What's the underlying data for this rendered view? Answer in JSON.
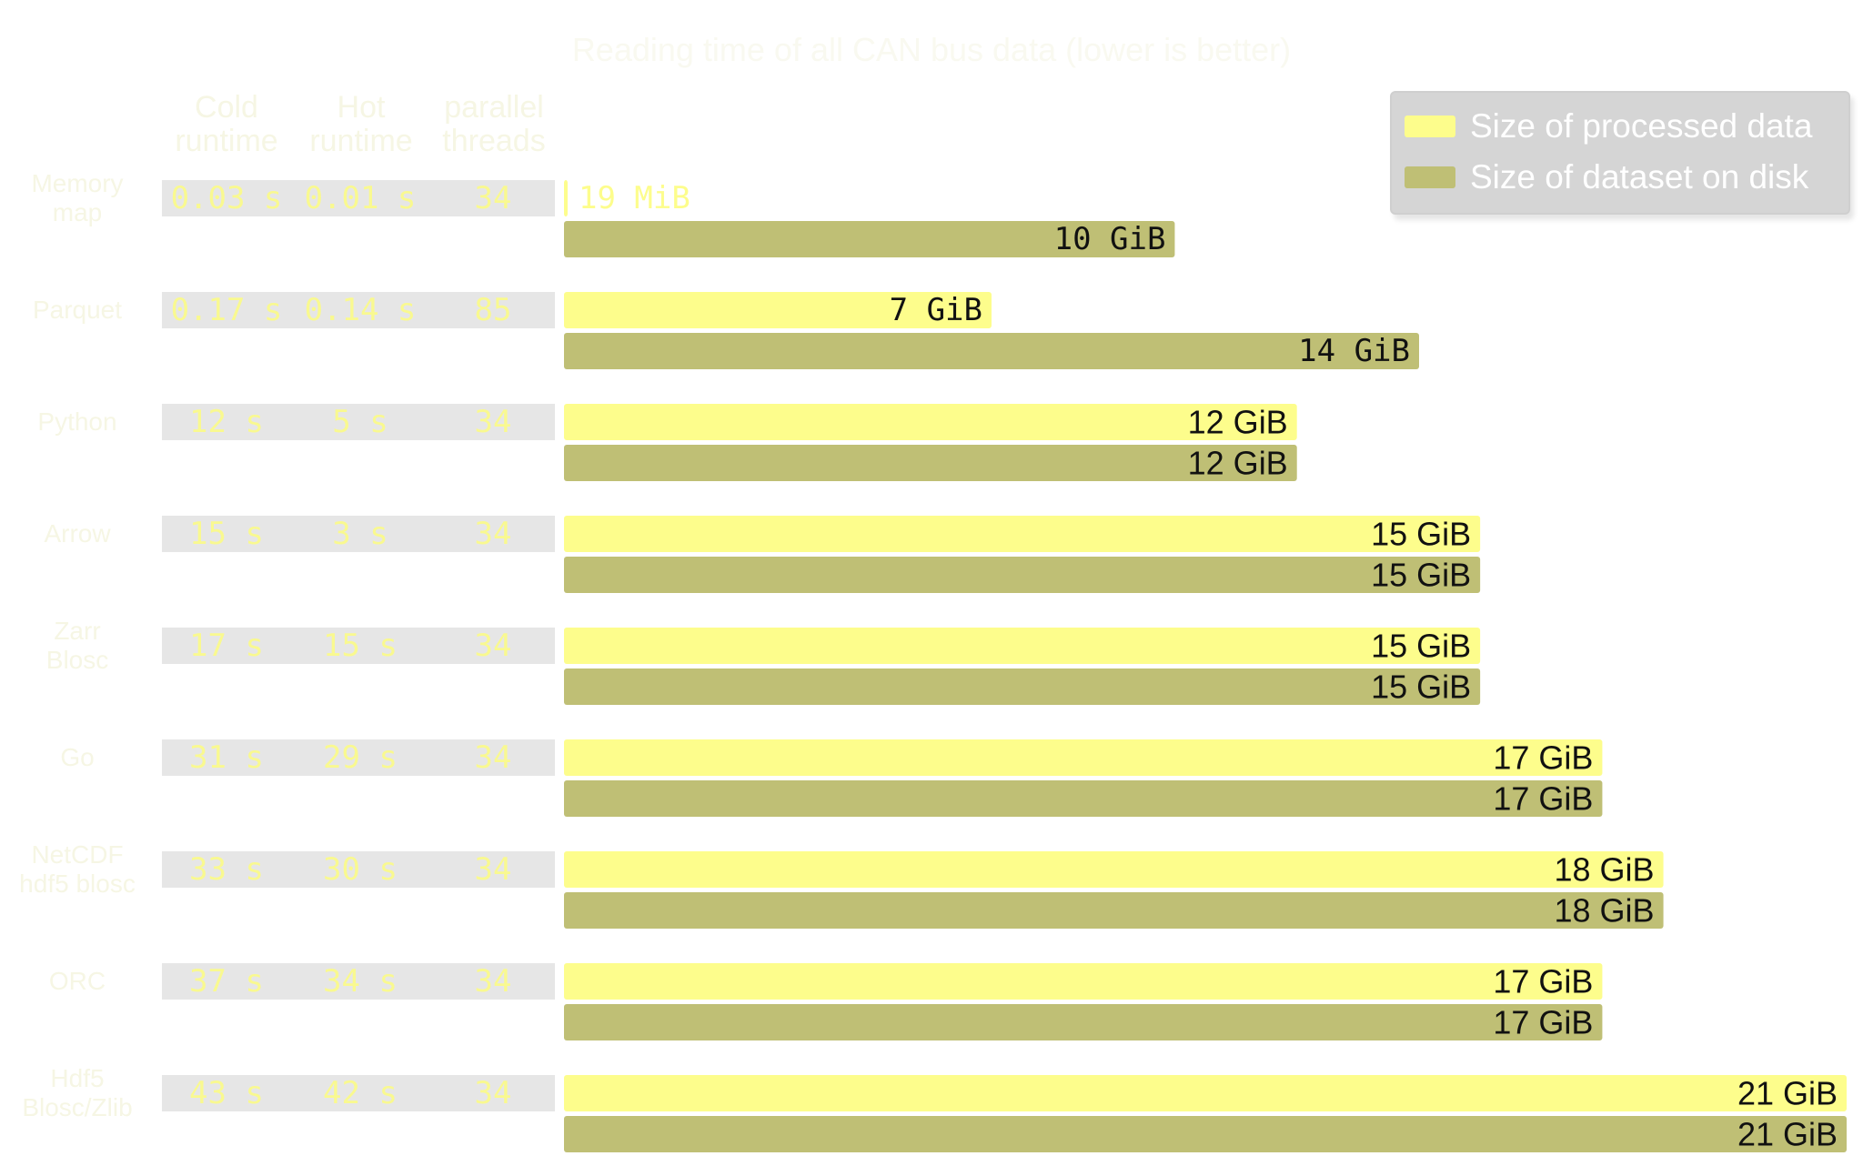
{
  "title": "Reading time of all CAN bus data (lower is better)",
  "headers": {
    "cold": "Cold\nruntime",
    "hot": "Hot\nruntime",
    "threads": "parallel\nthreads"
  },
  "legend": {
    "processed": "Size of processed data",
    "disk": "Size of dataset on disk"
  },
  "colors": {
    "processed": "#fdfd8c",
    "disk": "#bfbf75",
    "cell_bg": "#e6e6e6",
    "cell_text": "#f9f990",
    "bar_label": "#111111"
  },
  "chart_data": {
    "type": "bar",
    "orientation": "horizontal",
    "categories": [
      "Memory\nmap",
      "Parquet",
      "Python",
      "Arrow",
      "Zarr\nBlosc",
      "Go",
      "NetCDF\nhdf5 blosc",
      "ORC",
      "Hdf5\nBlosc/Zlib"
    ],
    "series": [
      {
        "name": "Size of processed data",
        "values": [
          0.0186,
          7,
          12,
          15,
          15,
          17,
          18,
          17,
          21
        ],
        "labels": [
          "19 MiB",
          "7 GiB",
          "12 GiB",
          "15 GiB",
          "15 GiB",
          "17 GiB",
          "18 GiB",
          "17 GiB",
          "21 GiB"
        ]
      },
      {
        "name": "Size of dataset on disk",
        "values": [
          10,
          14,
          12,
          15,
          15,
          17,
          18,
          17,
          21
        ],
        "labels": [
          "10 GiB",
          "14 GiB",
          "12 GiB",
          "15 GiB",
          "15 GiB",
          "17 GiB",
          "18 GiB",
          "17 GiB",
          "21 GiB"
        ]
      }
    ],
    "xlim": [
      0,
      21
    ],
    "table": [
      {
        "cold": "0.03 s",
        "hot": "0.01 s",
        "threads": "34"
      },
      {
        "cold": "0.17 s",
        "hot": "0.14 s",
        "threads": "85"
      },
      {
        "cold": "12 s",
        "hot": "5 s",
        "threads": "34"
      },
      {
        "cold": "15 s",
        "hot": "3 s",
        "threads": "34"
      },
      {
        "cold": "17 s",
        "hot": "15 s",
        "threads": "34"
      },
      {
        "cold": "31 s",
        "hot": "29 s",
        "threads": "34"
      },
      {
        "cold": "33 s",
        "hot": "30 s",
        "threads": "34"
      },
      {
        "cold": "37 s",
        "hot": "34 s",
        "threads": "34"
      },
      {
        "cold": "43 s",
        "hot": "42 s",
        "threads": "34"
      }
    ]
  }
}
